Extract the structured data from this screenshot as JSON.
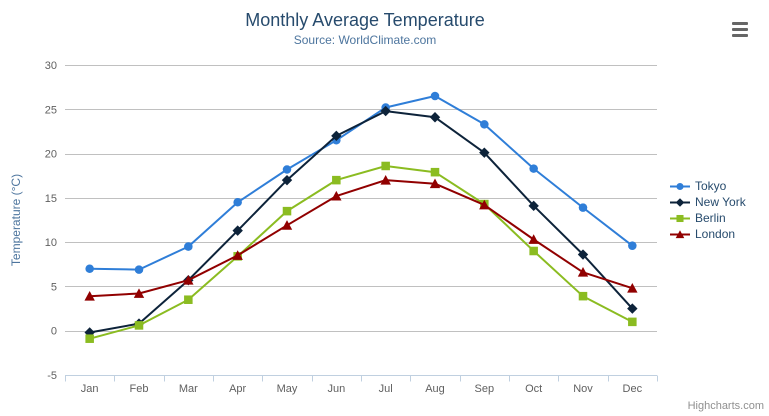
{
  "header": {
    "title": "Monthly Average Temperature",
    "subtitle": "Source: WorldClimate.com"
  },
  "credits": {
    "label": "Highcharts.com"
  },
  "icons": {
    "export_menu": "hamburger-icon"
  },
  "colors": {
    "background": "#ffffff",
    "grid": "#C0C0C0",
    "axis_line": "#C0D0E0",
    "tick": "#C0D0E0",
    "axis_label": "#606060",
    "title": "#274b6d",
    "subtitle": "#4d759e",
    "y_title": "#4d759e",
    "legend_text": "#274b6d",
    "credits": "#909090",
    "menu_icon": "#666666"
  },
  "chart_data": {
    "type": "line",
    "title": "Monthly Average Temperature",
    "subtitle": "Source: WorldClimate.com",
    "xlabel": "",
    "ylabel": "Temperature (°C)",
    "categories": [
      "Jan",
      "Feb",
      "Mar",
      "Apr",
      "May",
      "Jun",
      "Jul",
      "Aug",
      "Sep",
      "Oct",
      "Nov",
      "Dec"
    ],
    "series": [
      {
        "name": "Tokyo",
        "color": "#2f7ed8",
        "marker": "circle",
        "values": [
          7.0,
          6.9,
          9.5,
          14.5,
          18.2,
          21.5,
          25.2,
          26.5,
          23.3,
          18.3,
          13.9,
          9.6
        ]
      },
      {
        "name": "New York",
        "color": "#0d233a",
        "marker": "diamond",
        "values": [
          -0.2,
          0.8,
          5.7,
          11.3,
          17.0,
          22.0,
          24.8,
          24.1,
          20.1,
          14.1,
          8.6,
          2.5
        ]
      },
      {
        "name": "Berlin",
        "color": "#8bbc21",
        "marker": "square",
        "values": [
          -0.9,
          0.6,
          3.5,
          8.4,
          13.5,
          17.0,
          18.6,
          17.9,
          14.3,
          9.0,
          3.9,
          1.0
        ]
      },
      {
        "name": "London",
        "color": "#910000",
        "marker": "triangle",
        "values": [
          3.9,
          4.2,
          5.7,
          8.5,
          11.9,
          15.2,
          17.0,
          16.6,
          14.2,
          10.3,
          6.6,
          4.8
        ]
      }
    ],
    "ylim": [
      -5,
      30
    ],
    "yticks": [
      -5,
      0,
      5,
      10,
      15,
      20,
      25,
      30
    ],
    "grid": true,
    "legend_position": "right"
  }
}
